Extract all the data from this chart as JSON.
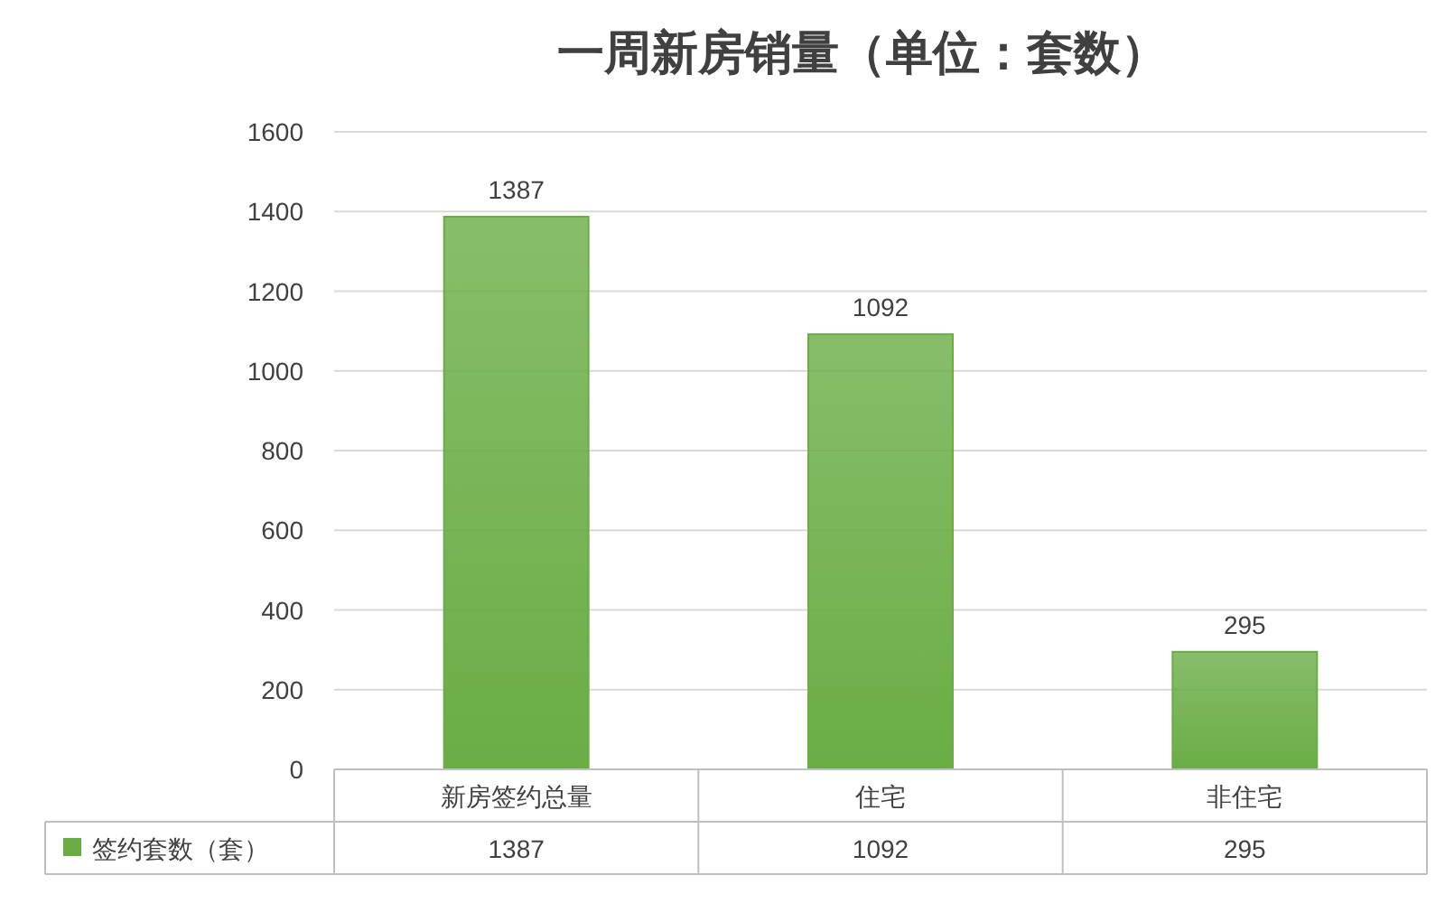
{
  "chart_data": {
    "type": "bar",
    "title": "一周新房销量（单位：套数）",
    "categories": [
      "新房签约总量",
      "住宅",
      "非住宅"
    ],
    "series": [
      {
        "name": "签约套数（套）",
        "color": "#6aad45",
        "values": [
          1387,
          1092,
          295
        ],
        "value_labels": [
          "1387",
          "1092",
          "295"
        ]
      }
    ],
    "ylim": [
      0,
      1600
    ],
    "yticks": [
      0,
      200,
      400,
      600,
      800,
      1000,
      1200,
      1400,
      1600
    ],
    "grid": "y",
    "legend": "bottom",
    "annotations": [
      "1387",
      "1092",
      "295"
    ]
  }
}
